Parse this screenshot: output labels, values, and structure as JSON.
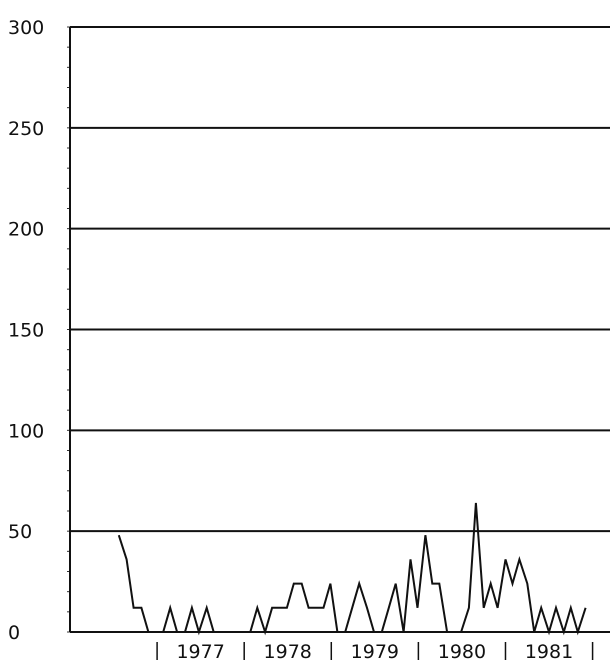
{
  "chart_data": {
    "type": "line",
    "title": "",
    "xlabel": "",
    "ylabel": "",
    "ylim": [
      0,
      300
    ],
    "y_ticks": [
      "0",
      "50",
      "100",
      "150",
      "200",
      "250",
      "300"
    ],
    "grid": "horizontal",
    "year_labels": [
      "1977",
      "1978",
      "1979",
      "1980",
      "1981"
    ],
    "series": [
      {
        "x": [
          1976.56,
          1976.65,
          1976.73,
          1976.82,
          1976.9,
          1976.98,
          1977.07,
          1977.15,
          1977.23,
          1977.32,
          1977.4,
          1977.48,
          1977.57,
          1977.65,
          1977.74,
          1977.82,
          1977.9,
          1977.99,
          1978.07,
          1978.15,
          1978.24,
          1978.32,
          1978.4,
          1978.49,
          1978.57,
          1978.66,
          1978.74,
          1978.82,
          1978.91,
          1978.99,
          1979.07,
          1979.16,
          1979.24,
          1979.32,
          1979.41,
          1979.49,
          1979.58,
          1979.66,
          1979.74,
          1979.83,
          1979.91,
          1979.99,
          1980.08,
          1980.16,
          1980.24,
          1980.33,
          1980.41,
          1980.49,
          1980.58,
          1980.66,
          1980.75,
          1980.83,
          1980.91,
          1981.0,
          1981.08,
          1981.16,
          1981.25,
          1981.33,
          1981.41,
          1981.5,
          1981.58,
          1981.67,
          1981.75,
          1981.83,
          1981.92
        ],
        "values": [
          48,
          36,
          12,
          12,
          0,
          0,
          0,
          12,
          0,
          0,
          12,
          0,
          12,
          0,
          0,
          0,
          0,
          0,
          0,
          12,
          0,
          12,
          12,
          12,
          24,
          24,
          12,
          12,
          12,
          24,
          0,
          0,
          12,
          24,
          12,
          0,
          0,
          12,
          24,
          0,
          36,
          12,
          48,
          24,
          24,
          0,
          0,
          0,
          12,
          64,
          12,
          24,
          12,
          36,
          24,
          36,
          24,
          0,
          12,
          0,
          12,
          0,
          12,
          0,
          12
        ]
      }
    ]
  }
}
